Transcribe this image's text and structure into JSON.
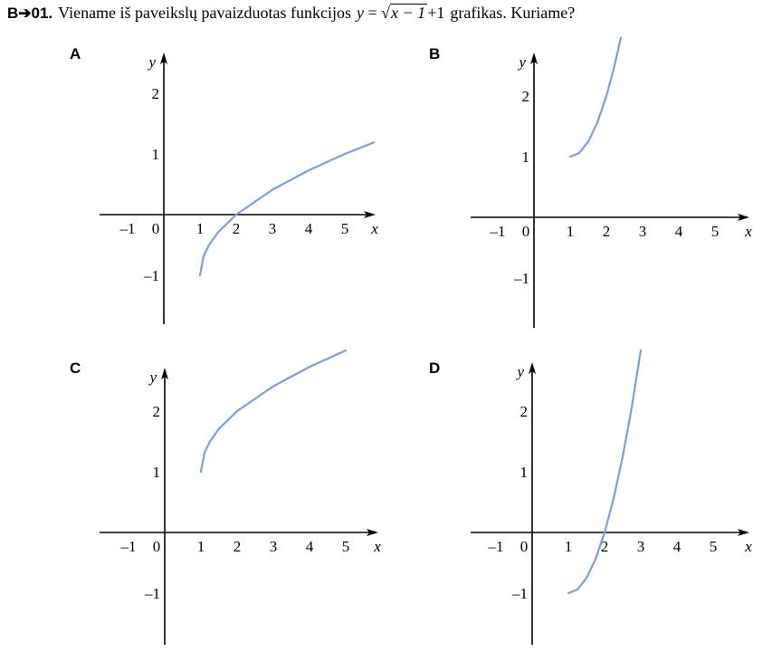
{
  "question": {
    "number": "B➔01.",
    "text_before": "Viename iš paveikslų pavaizduotas funkcijos",
    "formula": {
      "lhs": "y",
      "eq": "=",
      "sqrt_arg": "x − 1",
      "rhs": "+1"
    },
    "text_after": "grafikas. Kuriame?"
  },
  "panels": [
    {
      "letter": "A",
      "axis_x": "x",
      "axis_y": "y"
    },
    {
      "letter": "B",
      "axis_x": "x",
      "axis_y": "y"
    },
    {
      "letter": "C",
      "axis_x": "x",
      "axis_y": "y"
    },
    {
      "letter": "D",
      "axis_x": "x",
      "axis_y": "y"
    }
  ],
  "chart_data": [
    {
      "type": "line",
      "title": "A",
      "xlabel": "x",
      "ylabel": "y",
      "xticks": [
        "–1",
        "0",
        "1",
        "2",
        "3",
        "4",
        "5"
      ],
      "yticks": [
        "2",
        "1",
        "–1"
      ],
      "xlim": [
        -1.5,
        5.8
      ],
      "ylim": [
        -1.8,
        2.5
      ],
      "series": [
        {
          "x": [
            1,
            1.1,
            1.25,
            1.5,
            2,
            3,
            4,
            5,
            5.8
          ],
          "y": [
            -1,
            -0.68,
            -0.5,
            -0.29,
            0,
            0.41,
            0.73,
            1,
            1.19
          ]
        }
      ],
      "grid": false,
      "legend": "none",
      "line_color": "#7b9fd0"
    },
    {
      "type": "line",
      "title": "B",
      "xlabel": "x",
      "ylabel": "y",
      "xticks": [
        "–1",
        "0",
        "1",
        "2",
        "3",
        "4",
        "5"
      ],
      "yticks": [
        "2",
        "1",
        "–1"
      ],
      "xlim": [
        -1.5,
        5.8
      ],
      "ylim": [
        -1.8,
        2.5
      ],
      "series": [
        {
          "x": [
            1,
            1.25,
            1.5,
            1.75,
            2,
            2.2,
            2.4
          ],
          "y": [
            1,
            1.06,
            1.25,
            1.56,
            2,
            2.44,
            2.96
          ]
        }
      ],
      "grid": false,
      "legend": "none",
      "line_color": "#7b9fd0"
    },
    {
      "type": "line",
      "title": "C",
      "xlabel": "x",
      "ylabel": "y",
      "xticks": [
        "–1",
        "0",
        "1",
        "2",
        "3",
        "4",
        "5"
      ],
      "yticks": [
        "2",
        "1",
        "–1"
      ],
      "xlim": [
        -1.5,
        5.8
      ],
      "ylim": [
        -1.8,
        2.5
      ],
      "series": [
        {
          "x": [
            1,
            1.1,
            1.25,
            1.5,
            2,
            3,
            4,
            5
          ],
          "y": [
            1,
            1.32,
            1.5,
            1.71,
            2,
            2.41,
            2.73,
            3
          ]
        }
      ],
      "grid": false,
      "legend": "none",
      "line_color": "#7b9fd0"
    },
    {
      "type": "line",
      "title": "D",
      "xlabel": "x",
      "ylabel": "y",
      "xticks": [
        "–1",
        "0",
        "1",
        "2",
        "3",
        "4",
        "5"
      ],
      "yticks": [
        "2",
        "1",
        "–1"
      ],
      "xlim": [
        -1.5,
        5.8
      ],
      "ylim": [
        -1.8,
        2.5
      ],
      "series": [
        {
          "x": [
            1,
            1.25,
            1.5,
            1.75,
            2,
            2.25,
            2.5,
            2.75,
            3
          ],
          "y": [
            -1,
            -0.94,
            -0.75,
            -0.44,
            0,
            0.56,
            1.25,
            2.06,
            3
          ]
        }
      ],
      "grid": false,
      "legend": "none",
      "line_color": "#7b9fd0"
    }
  ]
}
